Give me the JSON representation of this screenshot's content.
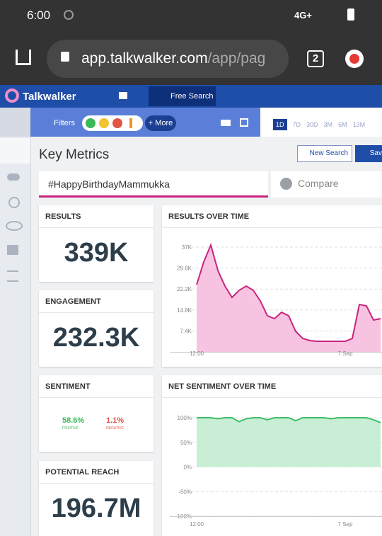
{
  "status_bar": {
    "time": "6:00",
    "network": "4G+"
  },
  "browser": {
    "url_host": "app.talkwalker.com",
    "url_path": "/app/pag",
    "tab_count": "2"
  },
  "app_header": {
    "brand": "Talkwalker",
    "tab": "Free Search"
  },
  "toolbar": {
    "filters": "Filters",
    "more": "+ More",
    "ranges": [
      "1D",
      "7D",
      "30D",
      "3M",
      "6M",
      "13M"
    ]
  },
  "page": {
    "title": "Key Metrics",
    "new_search": "New Search",
    "save": "Sav",
    "query": "#HappyBirthdayMammukka",
    "compare": "Compare"
  },
  "metrics": [
    {
      "label": "RESULTS",
      "value": "339K"
    },
    {
      "label": "ENGAGEMENT",
      "value": "232.3K"
    },
    {
      "label": "POTENTIAL REACH",
      "value": "196.7M"
    }
  ],
  "sentiment": {
    "label": "SENTIMENT",
    "positive": "58.6%",
    "positive_label": "POSITIVE",
    "negative": "1.1%",
    "negative_label": "NEGATIVE"
  },
  "chart_data": [
    {
      "type": "area",
      "title": "RESULTS OVER TIME",
      "categories": [
        "12:00",
        null,
        null,
        null,
        null,
        null,
        null,
        null,
        null,
        null,
        null,
        null,
        null,
        null,
        null,
        null,
        null,
        null,
        null,
        null,
        null,
        "7 Sep",
        null,
        null,
        null,
        null,
        null
      ],
      "values": [
        23750,
        31750,
        37750,
        28750,
        23250,
        19250,
        21750,
        23250,
        21750,
        18000,
        12750,
        11750,
        14000,
        12750,
        7250,
        4750,
        4000,
        3750,
        3750,
        3750,
        3750,
        3750,
        4750,
        16750,
        16250,
        11250,
        11750
      ],
      "ylim": [
        0,
        40000
      ],
      "yticks": [
        {
          "value": 7400,
          "label": "7.4K"
        },
        {
          "value": 14800,
          "label": "14.8K"
        },
        {
          "value": 22200,
          "label": "22.2K"
        },
        {
          "value": 29600,
          "label": "29.6K"
        },
        {
          "value": 37000,
          "label": "37K"
        }
      ],
      "grid": true,
      "color": "#c8247f",
      "area_color": "#f7c3e0"
    },
    {
      "type": "area",
      "title": "NET SENTIMENT OVER TIME",
      "categories": [
        "12:00",
        null,
        null,
        null,
        null,
        null,
        null,
        null,
        null,
        null,
        null,
        null,
        null,
        null,
        null,
        null,
        null,
        null,
        null,
        null,
        null,
        "7 Sep",
        null,
        null,
        null,
        null,
        null
      ],
      "values": [
        100,
        100,
        100,
        98,
        100,
        100,
        92,
        98,
        100,
        100,
        96,
        100,
        100,
        100,
        94,
        100,
        100,
        100,
        100,
        98,
        100,
        100,
        100,
        100,
        100,
        96,
        90
      ],
      "ylim": [
        -100,
        100
      ],
      "yticks": [
        {
          "value": -100,
          "label": "-100%"
        },
        {
          "value": -50,
          "label": "-50%"
        },
        {
          "value": 0,
          "label": "0%"
        },
        {
          "value": 50,
          "label": "50%"
        },
        {
          "value": 100,
          "label": "100%"
        }
      ],
      "grid": true,
      "color": "#3fbf6a",
      "area_color": "#c8efd5"
    }
  ]
}
